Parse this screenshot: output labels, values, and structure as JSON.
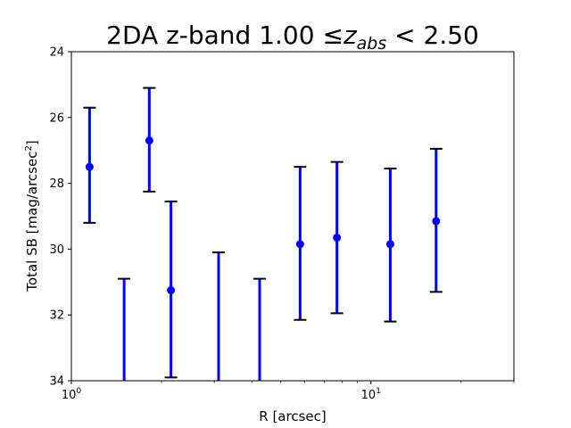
{
  "chart_data": {
    "type": "scatter",
    "title": {
      "prefix": "2DA z-band 1.00 ",
      "leq": "≤",
      "z": "z",
      "sub": "abs",
      "suffix": " < 2.50"
    },
    "xlabel": "R [arcsec]",
    "ylabel": {
      "text": "Total SB [mag/arcsec",
      "sup": "2",
      "close": "]"
    },
    "xscale": "log",
    "xlim": [
      1.0,
      30.0
    ],
    "ylim": [
      34,
      24
    ],
    "y_inverted": true,
    "x_ticks": [
      {
        "value": 1,
        "base": "10",
        "exp": "0"
      },
      {
        "value": 10,
        "base": "10",
        "exp": "1"
      }
    ],
    "x_minor_ticks": [
      2,
      3,
      4,
      5,
      6,
      7,
      8,
      9,
      20,
      30
    ],
    "y_ticks": [
      "24",
      "26",
      "28",
      "30",
      "32",
      "34"
    ],
    "grid": false,
    "marker_color": "#0000ff",
    "errorbar_color": "#0000ff",
    "cap_color": "#000000",
    "series": [
      {
        "points": [
          {
            "x": 1.15,
            "y": 27.5,
            "err_low": 29.2,
            "err_high": 25.7
          },
          {
            "x": 1.5,
            "y": null,
            "err_low": 34.0,
            "err_high": 30.9
          },
          {
            "x": 1.82,
            "y": 26.7,
            "err_low": 28.25,
            "err_high": 25.1
          },
          {
            "x": 2.15,
            "y": 31.25,
            "err_low": 33.9,
            "err_high": 28.55
          },
          {
            "x": 3.1,
            "y": null,
            "err_low": 34.0,
            "err_high": 30.1
          },
          {
            "x": 4.25,
            "y": null,
            "err_low": 34.0,
            "err_high": 30.9
          },
          {
            "x": 5.8,
            "y": 29.85,
            "err_low": 32.15,
            "err_high": 27.5
          },
          {
            "x": 7.7,
            "y": 29.65,
            "err_low": 31.95,
            "err_high": 27.35
          },
          {
            "x": 11.6,
            "y": 29.85,
            "err_low": 32.2,
            "err_high": 27.55
          },
          {
            "x": 16.5,
            "y": 29.15,
            "err_low": 31.3,
            "err_high": 26.95
          }
        ]
      }
    ]
  }
}
